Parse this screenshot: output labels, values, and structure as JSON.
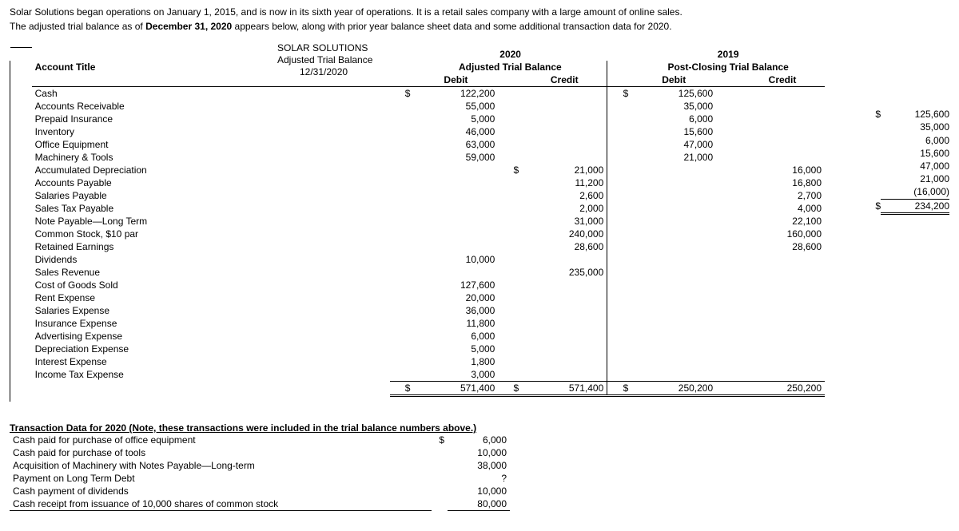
{
  "intro": {
    "line1_a": "Solar Solutions began operations on January 1, 2015, and is now in its sixth year of operations.  It is a retail sales company with a large amount of online sales.",
    "line2_a": "The adjusted trial balance as of ",
    "line2_b": "December 31, 2020",
    "line2_c": " appears below, along with prior year balance sheet data and some additional transaction data for 2020."
  },
  "title": {
    "l1": "SOLAR SOLUTIONS",
    "l2": "Adjusted Trial Balance",
    "l3": "12/31/2020"
  },
  "headers": {
    "y2020": "2020",
    "y2019": "2019",
    "atb": "Adjusted Trial Balance",
    "pctb": "Post-Closing Trial Balance",
    "debit": "Debit",
    "credit": "Credit",
    "acct": "Account Title"
  },
  "rows": [
    {
      "acct": "Cash",
      "d20c": "$",
      "d20": "122,200",
      "c20": "",
      "d19c": "$",
      "d19": "125,600",
      "c19": ""
    },
    {
      "acct": "Accounts Receivable",
      "d20": "55,000",
      "d19": "35,000"
    },
    {
      "acct": "Prepaid Insurance",
      "d20": "5,000",
      "d19": "6,000"
    },
    {
      "acct": "Inventory",
      "d20": "46,000",
      "d19": "15,600"
    },
    {
      "acct": "Office Equipment",
      "d20": "63,000",
      "d19": "47,000"
    },
    {
      "acct": "Machinery & Tools",
      "d20": "59,000",
      "d19": "21,000"
    },
    {
      "acct": "Accumulated Depreciation",
      "c20c": "$",
      "c20": "21,000",
      "c19": "16,000"
    },
    {
      "acct": "Accounts Payable",
      "c20": "11,200",
      "c19": "16,800"
    },
    {
      "acct": "Salaries Payable",
      "c20": "2,600",
      "c19": "2,700"
    },
    {
      "acct": "Sales Tax Payable",
      "c20": "2,000",
      "c19": "4,000"
    },
    {
      "acct": "Note Payable—Long Term",
      "c20": "31,000",
      "c19": "22,100"
    },
    {
      "acct": "Common Stock, $10 par",
      "c20": "240,000",
      "c19": "160,000"
    },
    {
      "acct": "Retained Earnings",
      "c20": "28,600",
      "c19": "28,600"
    },
    {
      "acct": "Dividends",
      "d20": "10,000"
    },
    {
      "acct": "Sales Revenue",
      "c20": "235,000"
    },
    {
      "acct": "Cost of Goods Sold",
      "d20": "127,600"
    },
    {
      "acct": "Rent Expense",
      "d20": "20,000"
    },
    {
      "acct": "Salaries Expense",
      "d20": "36,000"
    },
    {
      "acct": "Insurance Expense",
      "d20": "11,800"
    },
    {
      "acct": "Advertising Expense",
      "d20": "6,000"
    },
    {
      "acct": "Depreciation Expense",
      "d20": "5,000"
    },
    {
      "acct": "Interest Expense",
      "d20": "1,800"
    },
    {
      "acct": "Income Tax Expense",
      "d20": "3,000"
    }
  ],
  "totals": {
    "d20c": "$",
    "d20": "571,400",
    "c20c": "$",
    "c20": "571,400",
    "d19c": "$",
    "d19": "250,200",
    "c19": "250,200"
  },
  "side": [
    {
      "d": "$",
      "v": "125,600"
    },
    {
      "d": "",
      "v": "35,000"
    },
    {
      "d": "",
      "v": "6,000"
    },
    {
      "d": "",
      "v": "15,600"
    },
    {
      "d": "",
      "v": "47,000"
    },
    {
      "d": "",
      "v": "21,000"
    },
    {
      "d": "",
      "v": "(16,000)"
    },
    {
      "d": "$",
      "v": "234,200"
    }
  ],
  "trans": {
    "header": "Transaction Data for 2020 (Note, these transactions were included in the trial balance numbers above.)",
    "rows": [
      {
        "lbl": "Cash paid for purchase of office equipment",
        "cur": "$",
        "val": "6,000"
      },
      {
        "lbl": "Cash paid for purchase of tools",
        "val": "10,000"
      },
      {
        "lbl": "Acquisition of Machinery with Notes Payable—Long-term",
        "val": "38,000"
      },
      {
        "lbl": "Payment on Long Term Debt",
        "val": "?"
      },
      {
        "lbl": "Cash payment of dividends",
        "val": "10,000"
      },
      {
        "lbl": "Cash receipt from issuance of 10,000 shares of common stock",
        "val": "80,000"
      }
    ]
  }
}
